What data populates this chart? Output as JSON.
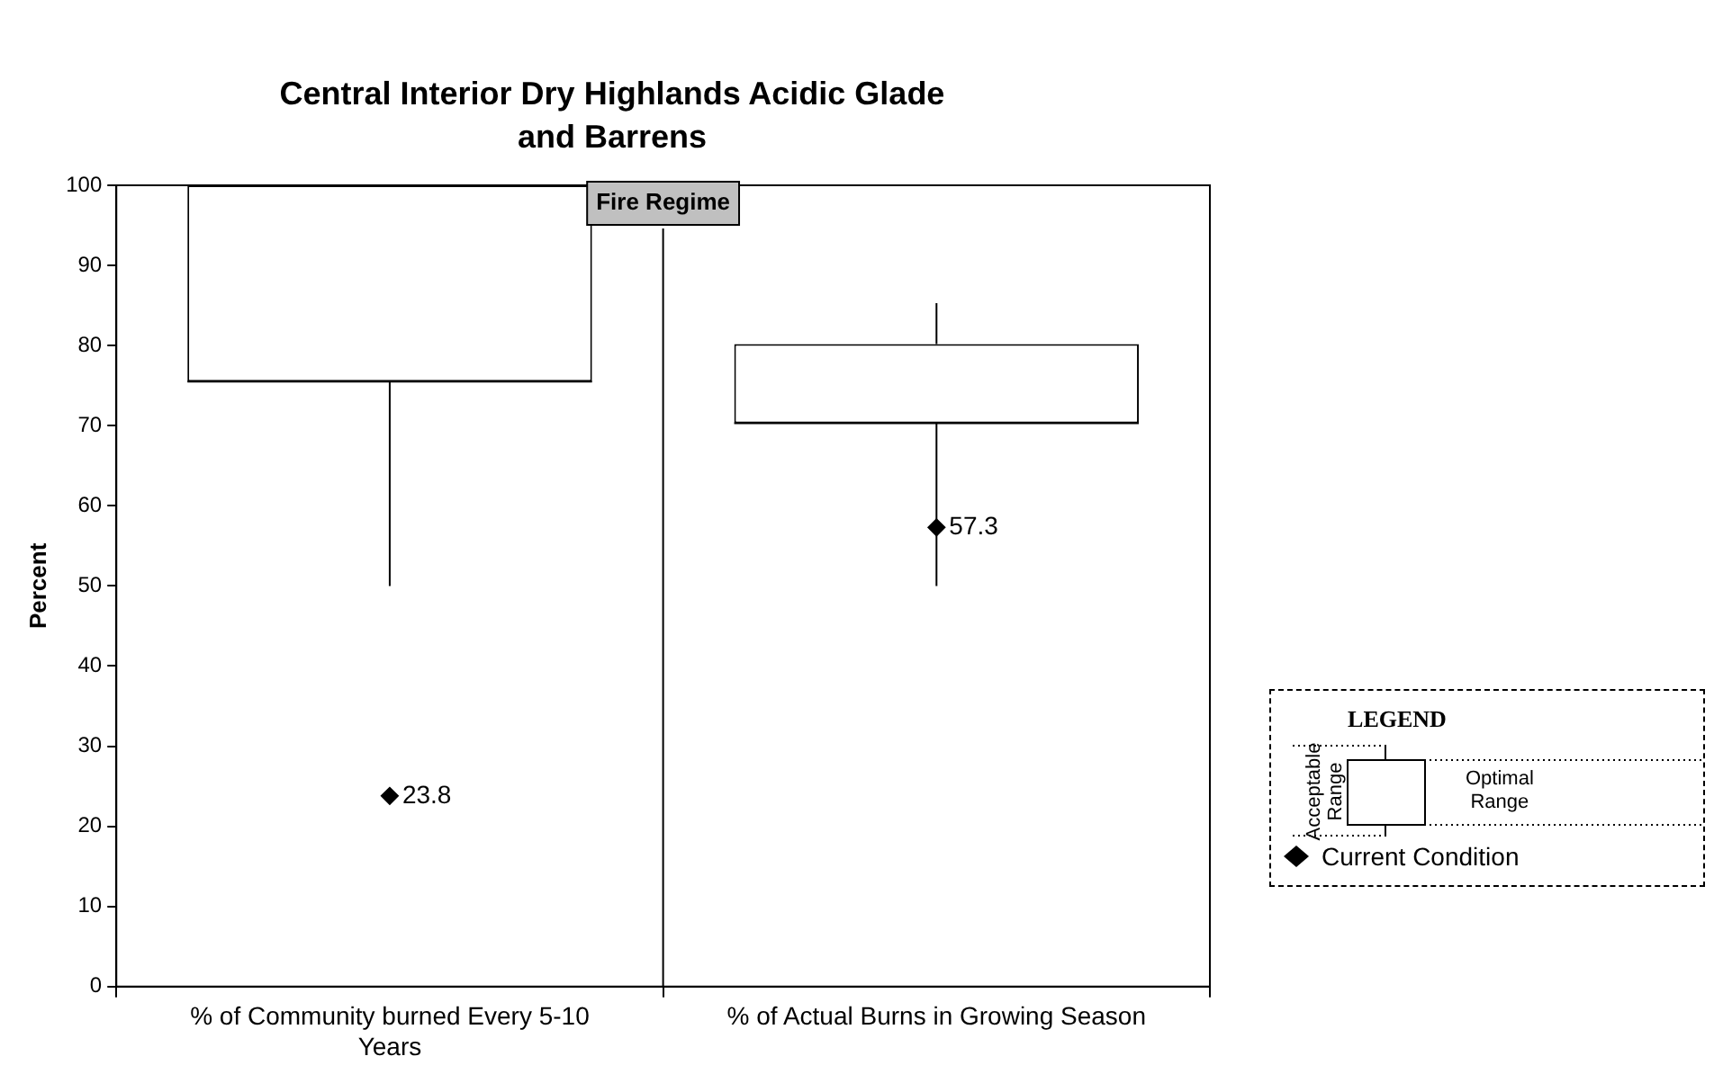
{
  "chart_data": {
    "type": "box",
    "title": "Central Interior Dry Highlands Acidic Glade and Barrens",
    "ylabel": "Percent",
    "legend_title": "LEGEND",
    "legend": "right",
    "categories": [
      "% of Community burned Every 5-10 Years",
      "% of Actual Burns in Growing Season"
    ],
    "ylim": [
      0,
      100
    ],
    "yticks": [
      0,
      10,
      20,
      30,
      40,
      50,
      60,
      70,
      80,
      90,
      100
    ],
    "grid": false,
    "annotations": [
      "Fire Regime",
      "Acceptable Range",
      "Optimal Range"
    ],
    "series": [
      {
        "color": "#000000",
        "boxes": [
          {
            "low": 50,
            "q1": 75.5,
            "median": 75.5,
            "q3": 100,
            "high": 100
          },
          {
            "low": 50,
            "q1": 70.3,
            "median": 70.3,
            "q3": 80.2,
            "high": 85.3
          }
        ]
      },
      {
        "type": "scatter",
        "name": "Current Condition",
        "color": "#000000",
        "marker": "diamond",
        "x": [
          "% of Community burned Every 5-10 Years",
          "% of Actual Burns in Growing Season"
        ],
        "values": [
          23.8,
          57.3
        ],
        "value_labels": [
          "23.8",
          "57.3"
        ]
      }
    ]
  }
}
